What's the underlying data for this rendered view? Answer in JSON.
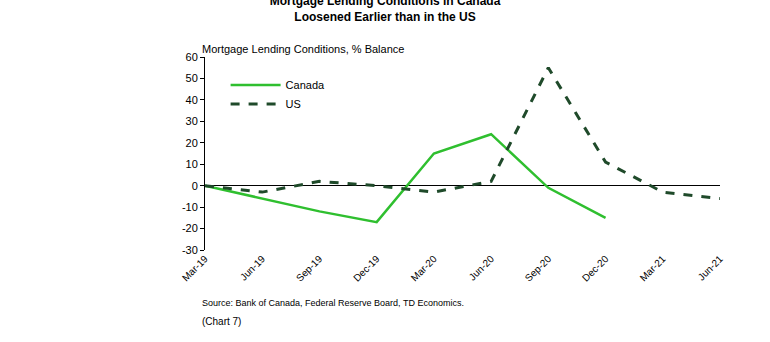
{
  "chart_data": {
    "type": "line",
    "title": "Mortgage Lending Conditions in Canada\nLoosened Earlier than in the US",
    "y_label": "Mortgage Lending Conditions, % Balance",
    "source": "Source: Bank of Canada, Federal Reserve Board, TD Economics.",
    "note": "(Chart 7)",
    "categories": [
      "Mar-19",
      "Jun-19",
      "Sep-19",
      "Dec-19",
      "Mar-20",
      "Jun-20",
      "Sep-20",
      "Dec-20",
      "Mar-21",
      "Jun-21"
    ],
    "series": [
      {
        "name": "Canada",
        "color": "#2fbf2f",
        "line_style": "solid",
        "values": [
          0,
          -6,
          -12,
          -17,
          15,
          24,
          -1,
          -15,
          null,
          null
        ]
      },
      {
        "name": "US",
        "color": "#1f4a2a",
        "line_style": "dashed",
        "values": [
          0,
          -3,
          2,
          0,
          -3,
          2,
          55,
          11,
          -3,
          -6
        ]
      }
    ],
    "ylim": [
      -30,
      60
    ],
    "yticks": [
      -30,
      -20,
      -10,
      0,
      10,
      20,
      30,
      40,
      50,
      60
    ],
    "grid": false,
    "legend": "upper left"
  }
}
